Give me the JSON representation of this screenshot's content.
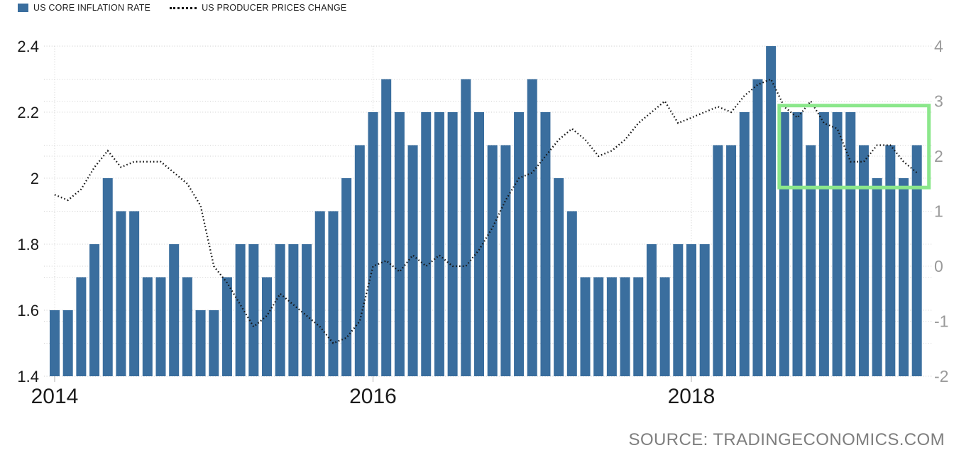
{
  "legend": [
    {
      "label": "US CORE INFLATION RATE",
      "swatch": "blue-rect"
    },
    {
      "label": "US PRODUCER PRICES CHANGE",
      "swatch": "dotted-line"
    }
  ],
  "source": "SOURCE: TRADINGECONOMICS.COM",
  "colors": {
    "bar": "#3A6E9E",
    "line": "#141414",
    "grid": "#cfcfcf",
    "tick": "#b0b0b0",
    "axis_left_text": "#1a1a1a",
    "axis_right_text": "#9a9a9a",
    "x_text": "#1b1b1b",
    "source_text": "#7e7e7e",
    "highlight": "#8BE78B",
    "background": "#ffffff"
  },
  "axes": {
    "left": {
      "tick_labels": [
        "2.4",
        "2.2",
        "2",
        "1.8",
        "1.6",
        "1.4"
      ],
      "tick_values": [
        2.4,
        2.2,
        2.0,
        1.8,
        1.6,
        1.4
      ],
      "range": [
        1.4,
        2.4
      ],
      "minor_grid_step": 0.1
    },
    "right": {
      "tick_labels": [
        "4",
        "3",
        "2",
        "1",
        "0",
        "-1",
        "-2"
      ],
      "tick_values": [
        4,
        3,
        2,
        1,
        0,
        -1,
        -2
      ],
      "range": [
        -2,
        4
      ],
      "grid_step": 1
    },
    "x": {
      "tick_labels": [
        "2014",
        "2016",
        "2018"
      ],
      "tick_month_index": [
        0,
        24,
        48
      ]
    }
  },
  "chart_data": {
    "type": "combo",
    "frequency": "monthly",
    "start": "2014-01",
    "end": "2019-06",
    "grid": "dotted",
    "legend_position": "top-left",
    "series": [
      {
        "name": "US CORE INFLATION RATE",
        "type": "bar",
        "axis": "left",
        "color": "#3A6E9E",
        "values": [
          1.6,
          1.6,
          1.7,
          1.8,
          2.0,
          1.9,
          1.9,
          1.7,
          1.7,
          1.8,
          1.7,
          1.6,
          1.6,
          1.7,
          1.8,
          1.8,
          1.7,
          1.8,
          1.8,
          1.8,
          1.9,
          1.9,
          2.0,
          2.1,
          2.2,
          2.3,
          2.2,
          2.1,
          2.2,
          2.2,
          2.2,
          2.3,
          2.2,
          2.1,
          2.1,
          2.2,
          2.3,
          2.2,
          2.0,
          1.9,
          1.7,
          1.7,
          1.7,
          1.7,
          1.7,
          1.8,
          1.7,
          1.8,
          1.8,
          1.8,
          2.1,
          2.1,
          2.2,
          2.3,
          2.4,
          2.2,
          2.2,
          2.1,
          2.2,
          2.2,
          2.2,
          2.1,
          2.0,
          2.1,
          2.0,
          2.1
        ]
      },
      {
        "name": "US PRODUCER PRICES CHANGE",
        "type": "line",
        "style": "dotted",
        "axis": "right",
        "color": "#141414",
        "values": [
          1.3,
          1.2,
          1.4,
          1.8,
          2.1,
          1.8,
          1.9,
          1.9,
          1.9,
          1.7,
          1.5,
          1.1,
          0.0,
          -0.3,
          -0.7,
          -1.1,
          -0.9,
          -0.5,
          -0.7,
          -0.9,
          -1.1,
          -1.4,
          -1.3,
          -1.0,
          0.0,
          0.1,
          -0.1,
          0.2,
          0.0,
          0.2,
          0.0,
          0.0,
          0.3,
          0.7,
          1.2,
          1.6,
          1.7,
          2.0,
          2.3,
          2.5,
          2.3,
          2.0,
          2.1,
          2.3,
          2.6,
          2.8,
          3.0,
          2.6,
          2.7,
          2.8,
          2.9,
          2.8,
          3.1,
          3.3,
          3.4,
          2.9,
          2.7,
          3.0,
          2.6,
          2.5,
          1.9,
          1.9,
          2.2,
          2.2,
          1.9,
          1.7
        ]
      }
    ],
    "highlight_box": {
      "color": "#8BE78B",
      "from_month": "2018-08",
      "to_month": "2019-06",
      "month_index_from": 55,
      "month_index_to": 65,
      "right_axis_min": 1.43,
      "right_axis_max": 2.92
    }
  }
}
